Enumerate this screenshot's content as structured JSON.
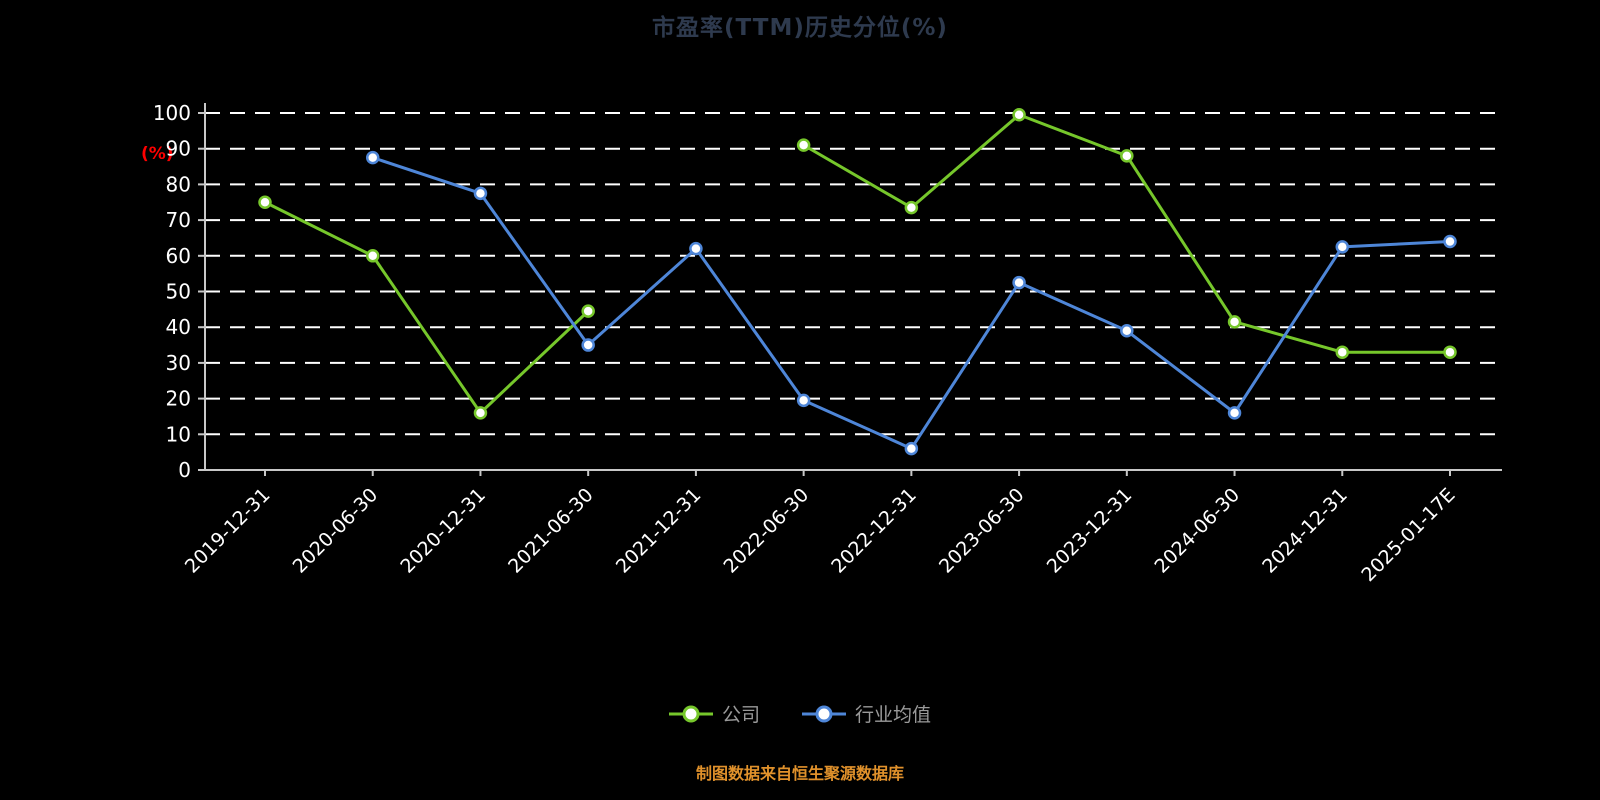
{
  "page": {
    "title": "市盈率(TTM)历史分位(%)",
    "footer": "制图数据来自恒生聚源数据库",
    "y_axis_unit": "(%)"
  },
  "chart_data": {
    "type": "line",
    "title": "市盈率(TTM)历史分位(%)",
    "xlabel": "",
    "ylabel": "(%)",
    "ylim": [
      0,
      100
    ],
    "ytick_step": 10,
    "grid": true,
    "grid_style": "dashed",
    "legend_position": "bottom",
    "categories": [
      "2019-12-31",
      "2020-06-30",
      "2020-12-31",
      "2021-06-30",
      "2021-12-31",
      "2022-06-30",
      "2022-12-31",
      "2023-06-30",
      "2023-12-31",
      "2024-06-30",
      "2024-12-31",
      "2025-01-17E"
    ],
    "series": [
      {
        "name": "公司",
        "color": "#76C72B",
        "values": [
          75,
          60,
          16,
          44.5,
          null,
          91,
          73.5,
          99.5,
          88,
          41.5,
          33,
          33
        ]
      },
      {
        "name": "行业均值",
        "color": "#4E86D8",
        "values": [
          null,
          87.5,
          77.5,
          35,
          62,
          19.5,
          6,
          52.5,
          39,
          16,
          62.5,
          64
        ]
      }
    ]
  },
  "colors": {
    "background": "#000000",
    "grid": "#FFFFFF",
    "axis": "#C8C8C8",
    "tick_text": "#FFFFFF",
    "title": "#2E3A4E",
    "y_unit": "#FF0000",
    "legend_text": "#9A9A9A",
    "footer": "#E0912B",
    "marker_fill": "#FFFFFF"
  }
}
